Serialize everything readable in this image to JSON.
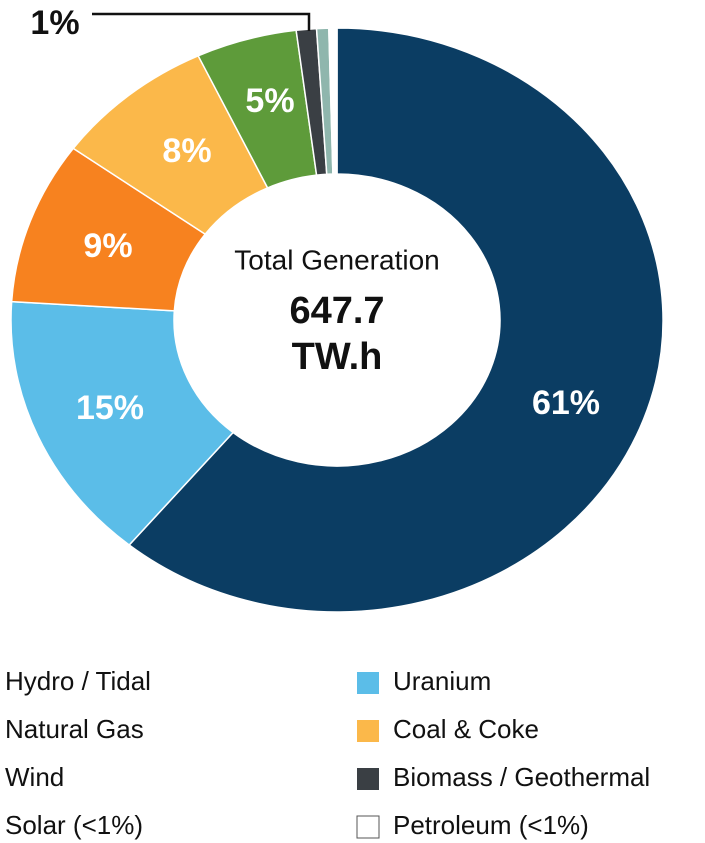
{
  "chart_data": {
    "type": "pie",
    "donut": true,
    "categories": [
      "Hydro / Tidal",
      "Uranium",
      "Natural Gas",
      "Coal & Coke",
      "Wind",
      "Biomass / Geothermal",
      "Solar (<1%)",
      "Petroleum (<1%)"
    ],
    "values": [
      61,
      15,
      9,
      8,
      5,
      1,
      0.6,
      0.4
    ],
    "value_labels": [
      "61%",
      "15%",
      "9%",
      "8%",
      "5%",
      "1%",
      null,
      null
    ],
    "colors": [
      "#0b3d63",
      "#5bbde8",
      "#f7821f",
      "#fbb84a",
      "#5e9b3a",
      "#3a3f44",
      "#8fb6ad",
      "#ffffff"
    ],
    "center_title": "Total Generation",
    "total": 647.7,
    "total_unit": "TW.h"
  }
}
